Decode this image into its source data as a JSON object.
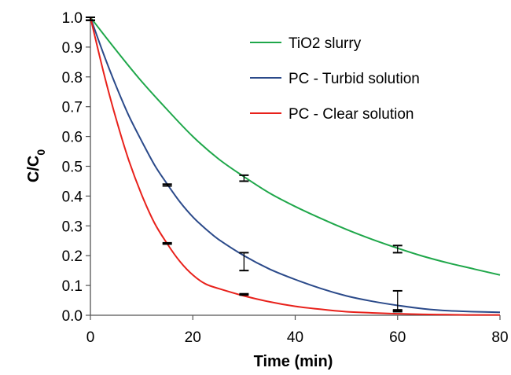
{
  "chart_data": {
    "type": "line",
    "title": "",
    "xlabel": "Time (min)",
    "ylabel": {
      "main": "C/C",
      "sub": "0"
    },
    "xlim": [
      0,
      80
    ],
    "ylim": [
      0,
      1.0
    ],
    "xticks": [
      "0",
      "20",
      "40",
      "60",
      "80"
    ],
    "yticks": [
      "0.0",
      "0.1",
      "0.2",
      "0.3",
      "0.4",
      "0.5",
      "0.6",
      "0.7",
      "0.8",
      "0.9",
      "1.0"
    ],
    "grid": false,
    "legend_position": "top-right",
    "series": [
      {
        "name": "TiO2 slurry",
        "color": "#1fa74a",
        "x": [
          0,
          5,
          10,
          15,
          20,
          25,
          30,
          35,
          40,
          45,
          50,
          55,
          60,
          65,
          70,
          75,
          80
        ],
        "y": [
          1.0,
          0.89,
          0.785,
          0.69,
          0.6,
          0.525,
          0.465,
          0.41,
          0.365,
          0.325,
          0.288,
          0.255,
          0.225,
          0.198,
          0.175,
          0.155,
          0.135
        ],
        "error_bars": [
          {
            "x": 0,
            "y": 1.0,
            "low": 0.99,
            "high": 1.0
          },
          {
            "x": 30,
            "y": 0.46,
            "low": 0.45,
            "high": 0.47
          },
          {
            "x": 60,
            "y": 0.222,
            "low": 0.21,
            "high": 0.234
          }
        ]
      },
      {
        "name": "PC - Turbid solution",
        "color": "#2b4a8a",
        "x": [
          0,
          2.5,
          5,
          7.5,
          10,
          12.5,
          15,
          17.5,
          20,
          22.5,
          25,
          30,
          35,
          40,
          45,
          50,
          55,
          60,
          65,
          70,
          75,
          80
        ],
        "y": [
          1.0,
          0.88,
          0.77,
          0.67,
          0.585,
          0.505,
          0.44,
          0.38,
          0.33,
          0.29,
          0.255,
          0.2,
          0.155,
          0.12,
          0.09,
          0.065,
          0.047,
          0.033,
          0.022,
          0.015,
          0.012,
          0.01
        ],
        "error_bars": [
          {
            "x": 0,
            "y": 1.0,
            "low": 0.99,
            "high": 1.0
          },
          {
            "x": 15,
            "y": 0.437,
            "low": 0.434,
            "high": 0.44
          },
          {
            "x": 30,
            "y": 0.18,
            "low": 0.15,
            "high": 0.21
          },
          {
            "x": 60,
            "y": 0.048,
            "low": 0.015,
            "high": 0.082
          }
        ]
      },
      {
        "name": "PC - Clear solution",
        "color": "#e8211b",
        "x": [
          0,
          2.5,
          5,
          7.5,
          10,
          12.5,
          15,
          17.5,
          20,
          22.5,
          25,
          30,
          35,
          40,
          45,
          50,
          55,
          60,
          65,
          70,
          75,
          80
        ],
        "y": [
          1.0,
          0.82,
          0.66,
          0.52,
          0.405,
          0.31,
          0.24,
          0.18,
          0.135,
          0.105,
          0.09,
          0.065,
          0.045,
          0.03,
          0.02,
          0.012,
          0.008,
          0.005,
          0.003,
          0.002,
          0.001,
          0.001
        ],
        "error_bars": [
          {
            "x": 0,
            "y": 1.0,
            "low": 0.99,
            "high": 1.0
          },
          {
            "x": 15,
            "y": 0.241,
            "low": 0.239,
            "high": 0.243
          },
          {
            "x": 30,
            "y": 0.07,
            "low": 0.068,
            "high": 0.072
          },
          {
            "x": 60,
            "y": 0.015,
            "low": 0.012,
            "high": 0.018
          }
        ]
      }
    ]
  }
}
